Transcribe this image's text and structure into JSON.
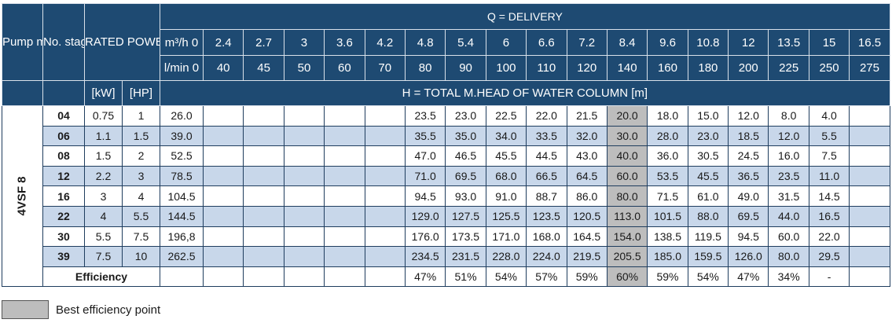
{
  "header": {
    "pump_model": "Pump model",
    "no_stages": "No. stages",
    "rated_power": "RATED POWER",
    "delivery": "Q = DELIVERY",
    "m3h_unit": "m³/h 0",
    "lmin_unit": "l/min 0",
    "kw": "[kW]",
    "hp": "[HP]",
    "total_head": "H = TOTAL M.HEAD OF WATER COLUMN [m]",
    "flow_m3h": [
      "2.4",
      "2.7",
      "3",
      "3.6",
      "4.2",
      "4.8",
      "5.4",
      "6",
      "6.6",
      "7.2",
      "8.4",
      "9.6",
      "10.8",
      "12",
      "13.5",
      "15",
      "16.5"
    ],
    "flow_lmin": [
      "40",
      "45",
      "50",
      "60",
      "70",
      "80",
      "90",
      "100",
      "110",
      "120",
      "140",
      "160",
      "180",
      "200",
      "225",
      "250",
      "275"
    ]
  },
  "model_name": "4VSF 8",
  "rows": [
    {
      "stages": "04",
      "kw": "0.75",
      "hp": "1",
      "zero": "26.0",
      "heads": [
        "",
        "",
        "",
        "",
        "",
        "23.5",
        "23.0",
        "22.5",
        "22.0",
        "21.5",
        "20.0",
        "18.0",
        "15.0",
        "12.0",
        "8.0",
        "4.0",
        ""
      ]
    },
    {
      "stages": "06",
      "kw": "1.1",
      "hp": "1.5",
      "zero": "39.0",
      "heads": [
        "",
        "",
        "",
        "",
        "",
        "35.5",
        "35.0",
        "34.0",
        "33.5",
        "32.0",
        "30.0",
        "28.0",
        "23.0",
        "18.5",
        "12.0",
        "5.5",
        ""
      ]
    },
    {
      "stages": "08",
      "kw": "1.5",
      "hp": "2",
      "zero": "52.5",
      "heads": [
        "",
        "",
        "",
        "",
        "",
        "47.0",
        "46.5",
        "45.5",
        "44.5",
        "43.0",
        "40.0",
        "36.0",
        "30.5",
        "24.5",
        "16.0",
        "7.5",
        ""
      ]
    },
    {
      "stages": "12",
      "kw": "2.2",
      "hp": "3",
      "zero": "78.5",
      "heads": [
        "",
        "",
        "",
        "",
        "",
        "71.0",
        "69.5",
        "68.0",
        "66.5",
        "64.5",
        "60.0",
        "53.5",
        "45.5",
        "36.5",
        "23.5",
        "11.0",
        ""
      ]
    },
    {
      "stages": "16",
      "kw": "3",
      "hp": "4",
      "zero": "104.5",
      "heads": [
        "",
        "",
        "",
        "",
        "",
        "94.5",
        "93.0",
        "91.0",
        "88.7",
        "86.0",
        "80.0",
        "71.5",
        "61.0",
        "49.0",
        "31.5",
        "14.5",
        ""
      ]
    },
    {
      "stages": "22",
      "kw": "4",
      "hp": "5.5",
      "zero": "144.5",
      "heads": [
        "",
        "",
        "",
        "",
        "",
        "129.0",
        "127.5",
        "125.5",
        "123.5",
        "120.5",
        "113.0",
        "101.5",
        "88.0",
        "69.5",
        "44.0",
        "16.5",
        ""
      ]
    },
    {
      "stages": "30",
      "kw": "5.5",
      "hp": "7.5",
      "zero": "196,8",
      "heads": [
        "",
        "",
        "",
        "",
        "",
        "176.0",
        "173.5",
        "171.0",
        "168.0",
        "164.5",
        "154.0",
        "138.5",
        "119.5",
        "94.5",
        "60.0",
        "22.0",
        ""
      ]
    },
    {
      "stages": "39",
      "kw": "7.5",
      "hp": "10",
      "zero": "262.5",
      "heads": [
        "",
        "",
        "",
        "",
        "",
        "234.5",
        "231.5",
        "228.0",
        "224.0",
        "219.5",
        "205.5",
        "185.0",
        "159.5",
        "126.0",
        "80.0",
        "29.5",
        ""
      ]
    }
  ],
  "efficiency": {
    "label": "Efficiency",
    "zero": "",
    "values": [
      "",
      "",
      "",
      "",
      "",
      "47%",
      "51%",
      "54%",
      "57%",
      "59%",
      "60%",
      "59%",
      "54%",
      "47%",
      "34%",
      "-",
      ""
    ]
  },
  "best_efficiency_index": 10,
  "colors": {
    "header_bg": "#1e4a72",
    "alt_row_bg": "#c8d7ea",
    "bep_bg": "#bdbdbd"
  },
  "legend": {
    "label": "Best efficiency point"
  }
}
